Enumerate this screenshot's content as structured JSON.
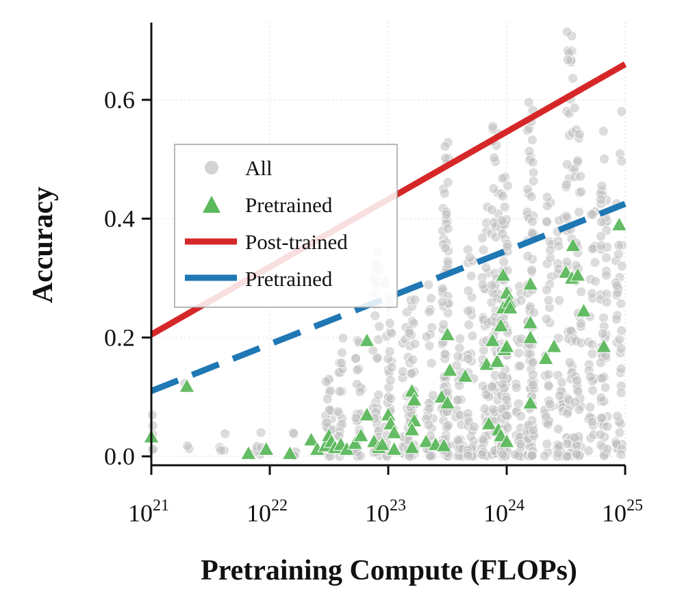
{
  "chart_data": {
    "type": "scatter",
    "title": "",
    "xlabel": "Pretraining Compute (FLOPs)",
    "ylabel": "Accuracy",
    "xscale": "log",
    "xlim_log10": [
      21,
      25
    ],
    "ylim": [
      -0.015,
      0.73
    ],
    "x_ticks": [
      {
        "base": "10",
        "exp": "21",
        "log10": 21
      },
      {
        "base": "10",
        "exp": "22",
        "log10": 22
      },
      {
        "base": "10",
        "exp": "23",
        "log10": 23
      },
      {
        "base": "10",
        "exp": "24",
        "log10": 24
      },
      {
        "base": "10",
        "exp": "25",
        "log10": 25
      }
    ],
    "y_ticks": [
      {
        "label": "0.0",
        "value": 0.0
      },
      {
        "label": "0.2",
        "value": 0.2
      },
      {
        "label": "0.4",
        "value": 0.4
      },
      {
        "label": "0.6",
        "value": 0.6
      }
    ],
    "grid": "dotted, light",
    "legend": {
      "placement": "center-left",
      "entries": [
        {
          "label": "All",
          "marker": "circle",
          "color": "#c8c8c8"
        },
        {
          "label": "Pretrained",
          "marker": "triangle",
          "color": "#5cb85c"
        },
        {
          "label": "Post-trained",
          "marker": "line",
          "color": "#d62728"
        },
        {
          "label": "Pretrained",
          "marker": "dashed-line",
          "color": "#1f77b4"
        }
      ]
    },
    "series": [
      {
        "name": "Post-trained",
        "kind": "fit-line",
        "color": "#d62728",
        "points": [
          [
            21,
            0.205
          ],
          [
            25,
            0.66
          ]
        ]
      },
      {
        "name": "Pretrained fit",
        "kind": "fit-line-dashed",
        "color": "#1f77b4",
        "points": [
          [
            21,
            0.11
          ],
          [
            25,
            0.425
          ]
        ]
      },
      {
        "name": "Pretrained",
        "kind": "triangles",
        "color": "#5cb85c",
        "points": [
          [
            21.0,
            0.033
          ],
          [
            21.3,
            0.118
          ],
          [
            21.82,
            0.005
          ],
          [
            21.97,
            0.012
          ],
          [
            22.17,
            0.005
          ],
          [
            22.35,
            0.028
          ],
          [
            22.4,
            0.012
          ],
          [
            22.47,
            0.018
          ],
          [
            22.5,
            0.035
          ],
          [
            22.52,
            0.025
          ],
          [
            22.55,
            0.015
          ],
          [
            22.6,
            0.02
          ],
          [
            22.65,
            0.012
          ],
          [
            22.72,
            0.022
          ],
          [
            22.77,
            0.035
          ],
          [
            22.82,
            0.07
          ],
          [
            22.82,
            0.195
          ],
          [
            22.88,
            0.025
          ],
          [
            22.92,
            0.015
          ],
          [
            22.95,
            0.02
          ],
          [
            23.0,
            0.07
          ],
          [
            23.02,
            0.055
          ],
          [
            23.05,
            0.04
          ],
          [
            23.05,
            0.012
          ],
          [
            23.2,
            0.11
          ],
          [
            23.22,
            0.095
          ],
          [
            23.22,
            0.06
          ],
          [
            23.2,
            0.045
          ],
          [
            23.2,
            0.015
          ],
          [
            23.32,
            0.025
          ],
          [
            23.4,
            0.02
          ],
          [
            23.45,
            0.1
          ],
          [
            23.5,
            0.09
          ],
          [
            23.5,
            0.205
          ],
          [
            23.52,
            0.145
          ],
          [
            23.47,
            0.018
          ],
          [
            23.65,
            0.135
          ],
          [
            23.83,
            0.155
          ],
          [
            23.85,
            0.055
          ],
          [
            23.88,
            0.195
          ],
          [
            23.92,
            0.16
          ],
          [
            23.93,
            0.045
          ],
          [
            23.95,
            0.035
          ],
          [
            23.95,
            0.22
          ],
          [
            23.97,
            0.305
          ],
          [
            23.97,
            0.25
          ],
          [
            23.98,
            0.18
          ],
          [
            24.0,
            0.025
          ],
          [
            24.0,
            0.275
          ],
          [
            24.0,
            0.185
          ],
          [
            24.02,
            0.26
          ],
          [
            24.03,
            0.25
          ],
          [
            24.2,
            0.29
          ],
          [
            24.2,
            0.2
          ],
          [
            24.2,
            0.225
          ],
          [
            24.2,
            0.09
          ],
          [
            24.33,
            0.165
          ],
          [
            24.4,
            0.185
          ],
          [
            24.5,
            0.31
          ],
          [
            24.55,
            0.3
          ],
          [
            24.56,
            0.355
          ],
          [
            24.6,
            0.305
          ],
          [
            24.65,
            0.245
          ],
          [
            24.82,
            0.185
          ],
          [
            24.95,
            0.39
          ]
        ]
      }
    ]
  }
}
